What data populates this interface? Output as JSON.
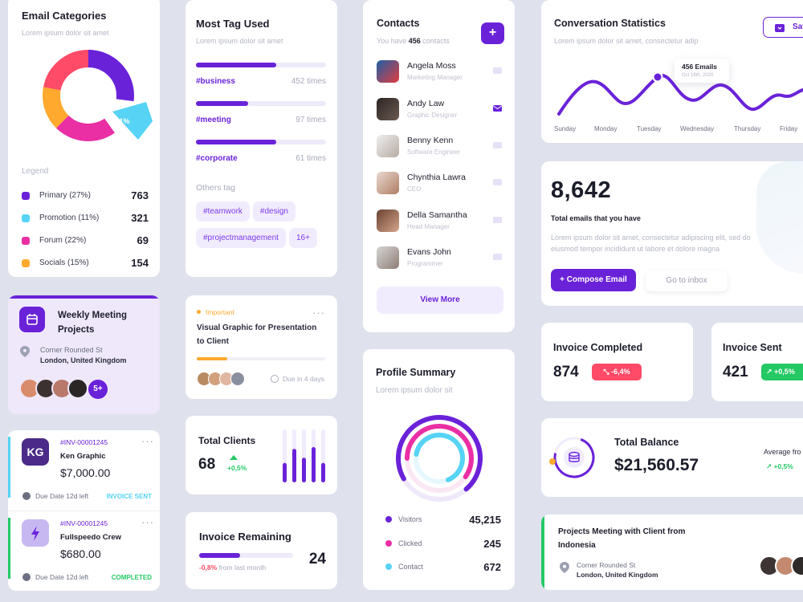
{
  "colors": {
    "accent": "#6a22d9",
    "red": "#ff4a68",
    "green": "#25c964",
    "cyan": "#56d3f5",
    "pink": "#ea2fa5",
    "orange": "#ffa92e"
  },
  "email_categories": {
    "title": "Email Categories",
    "subtitle": "Lorem ipsum dolor sit amet",
    "donut_label": "11%",
    "legend_title": "Legend",
    "items": [
      {
        "label": "Primary (27%)",
        "value": "763",
        "color": "#6a22d9"
      },
      {
        "label": "Promotion (11%)",
        "value": "321",
        "color": "#56d3f5"
      },
      {
        "label": "Forum (22%)",
        "value": "69",
        "color": "#ea2fa5"
      },
      {
        "label": "Socials (15%)",
        "value": "154",
        "color": "#ffa92e"
      }
    ]
  },
  "most_tag": {
    "title": "Most Tag Used",
    "subtitle": "Lorem ipsum dolor sit amet",
    "tags": [
      {
        "name": "#business",
        "count": "452 times",
        "fraction": 0.62
      },
      {
        "name": "#meeting",
        "count": "97 times",
        "fraction": 0.4
      },
      {
        "name": "#corporate",
        "count": "61 times",
        "fraction": 0.62
      }
    ],
    "others_title": "Others tag",
    "others": [
      "#teamwork",
      "#design",
      "#projectmanagement",
      "16+"
    ]
  },
  "contacts": {
    "title": "Contacts",
    "subtitle_prefix": "You have ",
    "count": "456",
    "subtitle_suffix": " contacts",
    "add_icon": "plus-icon",
    "people": [
      {
        "name": "Angela Moss",
        "role": "Marketing Manager"
      },
      {
        "name": "Andy Law",
        "role": "Graphic Designer"
      },
      {
        "name": "Benny Kenn",
        "role": "Software Engineer"
      },
      {
        "name": "Chynthia Lawra",
        "role": "CEO"
      },
      {
        "name": "Della Samantha",
        "role": "Head Manager"
      },
      {
        "name": "Evans John",
        "role": "Programmer"
      }
    ],
    "view_more": "View More"
  },
  "conversation": {
    "title": "Conversation Statistics",
    "subtitle": "Lorem ipsum dolor sit amet, consectetur adip",
    "save_label": "Sav",
    "tooltip_value": "456 Emails",
    "tooltip_date": "Oct 16th, 2020",
    "days": [
      "Sunday",
      "Monday",
      "Tuesday",
      "Wednesday",
      "Thursday",
      "Friday"
    ]
  },
  "total_emails": {
    "value": "8,642",
    "label": "Total emails that you have",
    "text": "Lorem ipsum dolor sit amet, consectetur adipiscing elit, sed do eiusmod tempor incididunt ut labore et dolore magna",
    "compose": "+ Compose Email",
    "inbox": "Go to inbox"
  },
  "weekly_meeting": {
    "title": "Weekly Meeting Projects",
    "address1": "Corner Rounded St",
    "address2": "London, United Kingdom",
    "more": "5+"
  },
  "important_task": {
    "tag": "Important",
    "title": "Visual Graphic for Presentation to Client",
    "progress": 0.24,
    "due": "Due in 4 days"
  },
  "invoices": [
    {
      "initials": "KG",
      "id": "#INV-00001245",
      "name": "Ken Graphic",
      "amount": "$7,000.00",
      "due": "Due Date 12d left",
      "status": "INVOICE SENT"
    },
    {
      "initials": "",
      "id": "#INV-00001245",
      "name": "Fullspeedo Crew",
      "amount": "$680.00",
      "due": "Due Date 12d left",
      "status": "COMPLETED"
    }
  ],
  "total_clients": {
    "title": "Total Clients",
    "value": "68",
    "change": "+0,5%",
    "bars": [
      0.55,
      0.95,
      0.7,
      1.0,
      0.55
    ]
  },
  "invoice_remaining": {
    "title": "Invoice Remaining",
    "value": "24",
    "change": "-0,8%",
    "change_suffix": " from last month",
    "progress": 0.44
  },
  "profile_summary": {
    "title": "Profile Summary",
    "subtitle": "Lorem ipsum dolor sit",
    "items": [
      {
        "label": "Visitors",
        "value": "45,215",
        "color": "#6a22d9"
      },
      {
        "label": "Clicked",
        "value": "245",
        "color": "#ea2fa5"
      },
      {
        "label": "Contact",
        "value": "672",
        "color": "#56d3f5"
      }
    ]
  },
  "invoice_completed": {
    "title": "Invoice Completed",
    "value": "874",
    "change": "-6,4%"
  },
  "invoice_sent": {
    "title": "Invoice Sent",
    "value": "421",
    "change": "+0,5%"
  },
  "total_balance": {
    "title": "Total Balance",
    "value": "$21,560.57",
    "avg_label": "Average fro",
    "avg_change": "+0,5%"
  },
  "projects_meeting": {
    "title": "Projects Meeting with Client from Indonesia",
    "address1": "Corner Rounded St",
    "address2": "London, United Kingdom"
  }
}
